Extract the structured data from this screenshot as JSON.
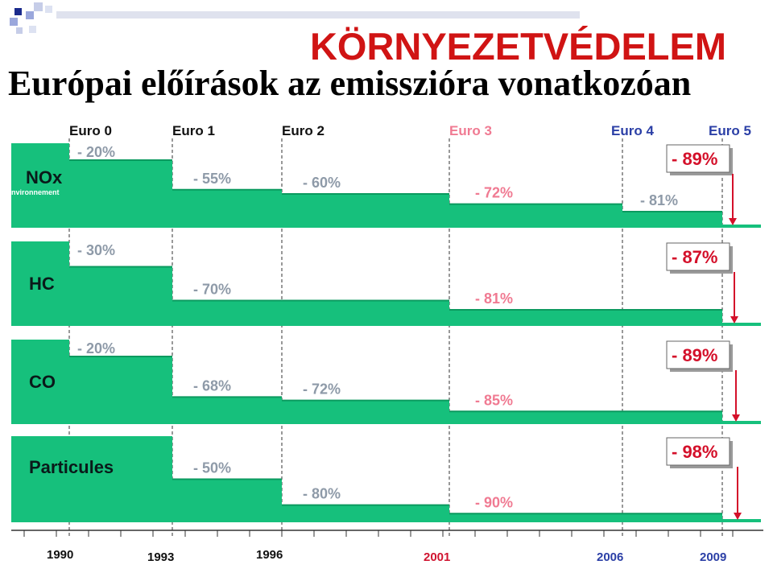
{
  "header": {
    "title": "KÖRNYEZETVÉDELEM",
    "subtitle": "Európai előírások az emisszióra vonatkozóan",
    "watermark": "nvironnement"
  },
  "colors": {
    "bar": "#16c07c",
    "bar_dark": "#0b9a5f",
    "title": "#d01414",
    "percent_grey": "#8e9aa8",
    "percent_pink": "#f07a92",
    "callout": "#d4102a",
    "euro_blue": "#2b3fa6",
    "euro_pink": "#f07a92"
  },
  "chart_data": {
    "type": "bar",
    "standards": [
      {
        "label": "Euro 0",
        "year": "1990",
        "color": "black"
      },
      {
        "label": "Euro 1",
        "year": "1993",
        "color": "black"
      },
      {
        "label": "Euro 2",
        "year": "1996",
        "color": "black"
      },
      {
        "label": "Euro 3",
        "year": "2001",
        "color": "pink"
      },
      {
        "label": "Euro 4",
        "year": "2006",
        "color": "blue"
      },
      {
        "label": "Euro 5",
        "year": "2009",
        "color": "blue"
      }
    ],
    "x_axis_years": [
      "1990",
      "1993",
      "1996",
      "2001",
      "2006",
      "2009"
    ],
    "panels": [
      {
        "pollutant": "NOx",
        "steps": [
          {
            "label": "- 20%",
            "value": 80
          },
          {
            "label": "- 55%",
            "value": 45
          },
          {
            "label": "- 60%",
            "value": 40
          },
          {
            "label": "- 72%",
            "value": 28
          },
          {
            "label": "- 81%",
            "value": 19
          }
        ],
        "euro5_reduction": "- 89%",
        "euro5_value": 11
      },
      {
        "pollutant": "HC",
        "steps": [
          {
            "label": "- 30%",
            "value": 70
          },
          {
            "label": "- 70%",
            "value": 30
          },
          {
            "label": null,
            "value": 30
          },
          {
            "label": "- 81%",
            "value": 19
          },
          {
            "label": null,
            "value": 19
          }
        ],
        "euro5_reduction": "- 87%",
        "euro5_value": 13
      },
      {
        "pollutant": "CO",
        "steps": [
          {
            "label": "- 20%",
            "value": 80
          },
          {
            "label": "- 68%",
            "value": 32
          },
          {
            "label": "- 72%",
            "value": 28
          },
          {
            "label": "- 85%",
            "value": 15
          },
          {
            "label": null,
            "value": 15
          }
        ],
        "euro5_reduction": "- 89%",
        "euro5_value": 11
      },
      {
        "pollutant": "Particules",
        "steps": [
          {
            "label": null,
            "value": 100
          },
          {
            "label": "- 50%",
            "value": 50
          },
          {
            "label": "- 80%",
            "value": 20
          },
          {
            "label": "- 90%",
            "value": 10
          },
          {
            "label": null,
            "value": 10
          }
        ],
        "euro5_reduction": "- 98%",
        "euro5_value": 2
      }
    ]
  }
}
